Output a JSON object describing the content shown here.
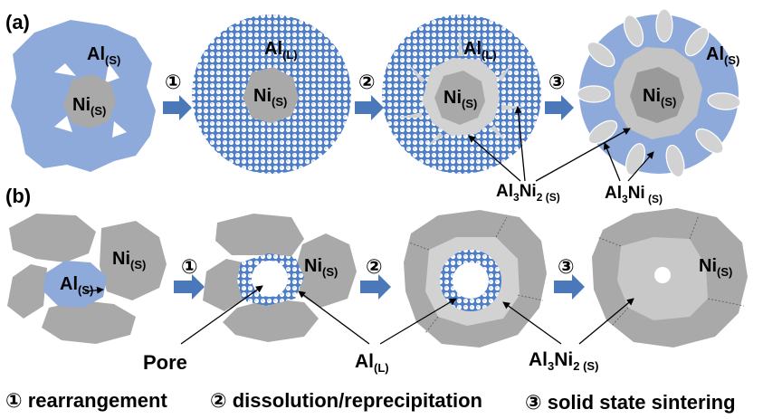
{
  "panel_a": {
    "tag": "(a)",
    "stage1": {
      "al": "Al",
      "al_sub": "(S)",
      "ni": "Ni",
      "ni_sub": "(S)"
    },
    "stage2": {
      "al": "Al",
      "al_sub": "(L)",
      "ni": "Ni",
      "ni_sub": "(S)"
    },
    "stage3": {
      "al": "Al",
      "al_sub": "(L)",
      "ni": "Ni",
      "ni_sub": "(S)"
    },
    "stage4": {
      "al": "Al",
      "al_sub": "(S)",
      "ni": "Ni",
      "ni_sub": "(S)"
    },
    "step1": "①",
    "step2": "②",
    "step3": "③",
    "al3ni2": {
      "main": "Al",
      "sub1": "3",
      "mid": "Ni",
      "sub2": "2 (S)"
    },
    "al3ni": {
      "main": "Al",
      "sub1": "3",
      "mid": "Ni",
      "sub2": " (S)"
    }
  },
  "panel_b": {
    "tag": "(b)",
    "stage1": {
      "al": "Al",
      "al_sub": "(S)",
      "ni": "Ni",
      "ni_sub": "(S)"
    },
    "stage2": {
      "ni": "Ni",
      "ni_sub": "(S)"
    },
    "stage4": {
      "ni": "Ni",
      "ni_sub": "(S)"
    },
    "step1": "①",
    "step2": "②",
    "step3": "③",
    "pore": "Pore",
    "al_l": {
      "main": "Al",
      "sub": "(L)"
    },
    "al3ni2": {
      "main": "Al",
      "sub1": "3",
      "mid": "Ni",
      "sub2": "2  (S)"
    }
  },
  "legend": {
    "item1": "① rearrangement",
    "item2": "② dissolution/reprecipitation",
    "item3": "③ solid state  sintering"
  },
  "colors": {
    "al_solid": "#8eaadb",
    "ni": "#a9a9a9",
    "ni_dark": "#8f8f8f",
    "product": "#d2d2d2",
    "liquid_bg": "#4f7ec9",
    "arrow": "#4a78b8"
  }
}
